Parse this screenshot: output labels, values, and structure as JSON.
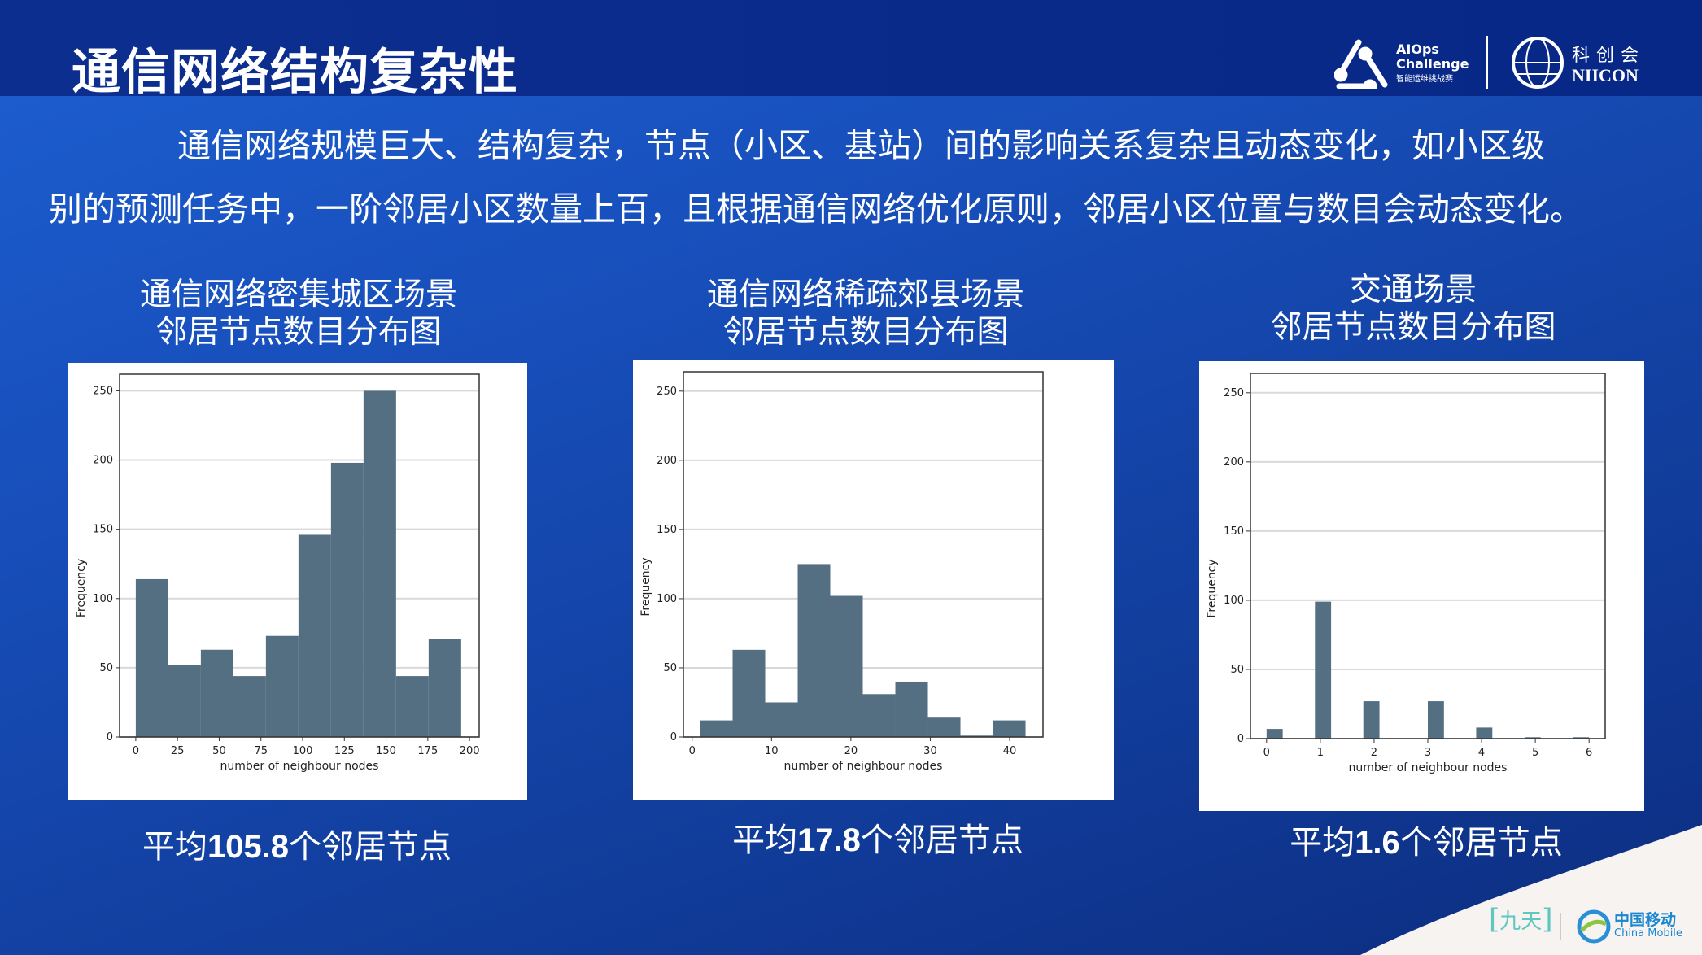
{
  "header": {
    "title": "通信网络结构复杂性",
    "logos": {
      "aiops": {
        "line1": "AIOps",
        "line2": "Challenge",
        "sub": "智能运维挑战赛"
      },
      "niicon": {
        "cn": "科创会",
        "en": "NIICON"
      },
      "jiutian": "九天",
      "china_mobile": {
        "cn": "中国移动",
        "en": "China Mobile"
      }
    }
  },
  "intro": {
    "line1": "通信网络规模巨大、结构复杂，节点（小区、基站）间的影响关系复杂且动态变化，如小区级",
    "line2": "别的预测任务中，一阶邻居小区数量上百，且根据通信网络优化原则，邻居小区位置与数目会动态变化。"
  },
  "panels": [
    {
      "title1": "通信网络密集城区场景",
      "title2": "邻居节点数目分布图",
      "caption_pre": "平均",
      "caption_num": "105.8",
      "caption_post": "个邻居节点"
    },
    {
      "title1": "通信网络稀疏郊县场景",
      "title2": "邻居节点数目分布图",
      "caption_pre": "平均",
      "caption_num": "17.8",
      "caption_post": "个邻居节点"
    },
    {
      "title1": "交通场景",
      "title2": "邻居节点数目分布图",
      "caption_pre": "平均",
      "caption_num": "1.6",
      "caption_post": "个邻居节点"
    }
  ],
  "colors": {
    "bar": "#546e82",
    "grid": "#d9d9d9",
    "background_top": "#0a2a8a",
    "background_main": "#1a55c4"
  },
  "chart_data": [
    {
      "type": "bar",
      "subtype": "histogram",
      "xlabel": "number of neighbour nodes",
      "ylabel": "Frequency",
      "bin_starts": [
        0,
        19.5,
        39,
        58.5,
        78,
        97.5,
        117,
        136.5,
        156,
        175.5
      ],
      "bin_width": 19.5,
      "values": [
        114,
        52,
        63,
        44,
        73,
        146,
        198,
        250,
        44,
        71
      ],
      "xlim": [
        -9.7,
        205.8
      ],
      "ylim": [
        0,
        262
      ],
      "xticks": [
        0,
        25,
        50,
        75,
        100,
        125,
        150,
        175,
        200
      ],
      "yticks": [
        0,
        50,
        100,
        150,
        200,
        250
      ],
      "grid": "horizontal"
    },
    {
      "type": "bar",
      "subtype": "histogram",
      "xlabel": "number of neighbour nodes",
      "ylabel": "Frequency",
      "bin_starts": [
        1,
        5.1,
        9.2,
        13.3,
        17.4,
        21.5,
        25.6,
        29.7,
        33.8,
        37.9
      ],
      "bin_width": 4.1,
      "values": [
        12,
        63,
        25,
        125,
        102,
        31,
        40,
        14,
        1,
        12
      ],
      "xlim": [
        -1.1,
        44.2
      ],
      "ylim": [
        0,
        264
      ],
      "xticks": [
        0,
        10,
        20,
        30,
        40
      ],
      "yticks": [
        0,
        50,
        100,
        150,
        200,
        250
      ],
      "grid": "horizontal"
    },
    {
      "type": "bar",
      "subtype": "histogram",
      "xlabel": "number of neighbour nodes",
      "ylabel": "Frequency",
      "bin_starts": [
        0,
        0.9,
        1.8,
        3.0,
        3.9,
        4.8,
        5.7
      ],
      "bin_width": 0.3,
      "values": [
        7,
        99,
        27,
        27,
        8,
        1,
        1
      ],
      "xlim": [
        -0.3,
        6.3
      ],
      "ylim": [
        0,
        264
      ],
      "xticks": [
        0,
        1,
        2,
        3,
        4,
        5,
        6
      ],
      "yticks": [
        0,
        50,
        100,
        150,
        200,
        250
      ],
      "grid": "horizontal"
    }
  ]
}
